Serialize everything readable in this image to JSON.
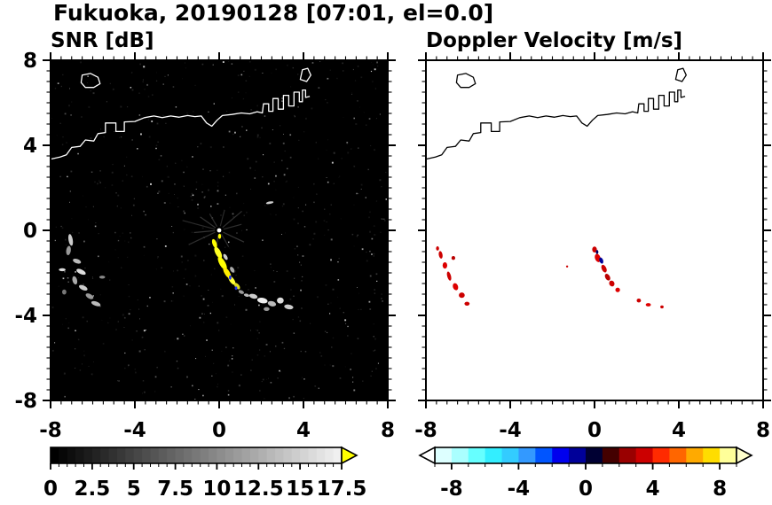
{
  "figure": {
    "title": "Fukuoka, 20190128 [07:01, el=0.0]"
  },
  "chart_data": {
    "type": "heatmap",
    "title": "Fukuoka, 20190128 [07:01, el=0.0]",
    "station": "Fukuoka",
    "date": "20190128",
    "time": "07:01",
    "elevation": "0.0",
    "axis_range": [
      -8,
      8
    ],
    "x_major_ticks": [
      -8,
      -4,
      0,
      4,
      8
    ],
    "x_tick_labels": [
      "-8",
      "-4",
      "0",
      "4",
      "8"
    ],
    "y_major_ticks": [
      8,
      4,
      0,
      -4,
      -8
    ],
    "y_tick_labels": [
      "8",
      "4",
      "0",
      "-4",
      "-8"
    ],
    "minor_tick_step": 0.5,
    "grid": false,
    "panels": [
      {
        "id": "snr",
        "title": "SNR [dB]",
        "units": "dB",
        "background": "#000000",
        "coast_color": "#ffffff",
        "show_y_labels": true,
        "noise": {
          "count": 700,
          "seed": 13,
          "palette": [
            "#151515",
            "#1d1d1d",
            "#252525",
            "#2d2d2d",
            "#383838",
            "#484848",
            "#5a5a5a",
            "#787878",
            "#9a9a9a",
            "#c0c0c0"
          ]
        },
        "center_artifact": {
          "x": 0,
          "y": 0,
          "dot_color": "#ffffff",
          "spokes": [
            {
              "angle": 155,
              "len": 1.6,
              "color": "#2e2e2e"
            },
            {
              "angle": 175,
              "len": 1.2,
              "color": "#333333"
            },
            {
              "angle": 195,
              "len": 1.8,
              "color": "#2a2a2a"
            },
            {
              "angle": 215,
              "len": 1.1,
              "color": "#333333"
            },
            {
              "angle": 240,
              "len": 0.9,
              "color": "#2e2e2e"
            },
            {
              "angle": 285,
              "len": 1.0,
              "color": "#2a2a2a"
            },
            {
              "angle": 320,
              "len": 1.4,
              "color": "#303030"
            },
            {
              "angle": 345,
              "len": 1.1,
              "color": "#2e2e2e"
            },
            {
              "angle": 25,
              "len": 1.3,
              "color": "#333333"
            },
            {
              "angle": 60,
              "len": 0.9,
              "color": "#2a2a2a"
            },
            {
              "angle": 100,
              "len": 1.0,
              "color": "#2e2e2e"
            }
          ]
        },
        "echoes": [
          {
            "x": -7.05,
            "y": -0.45,
            "rx": 0.1,
            "ry": 0.28,
            "rot": -10,
            "color": "#cccccc"
          },
          {
            "x": -7.15,
            "y": -0.95,
            "rx": 0.11,
            "ry": 0.22,
            "rot": 8,
            "color": "#999999"
          },
          {
            "x": -6.75,
            "y": -1.45,
            "rx": 0.2,
            "ry": 0.1,
            "rot": 20,
            "color": "#bbbbbb"
          },
          {
            "x": -6.55,
            "y": -1.95,
            "rx": 0.24,
            "ry": 0.11,
            "rot": 25,
            "color": "#dddddd"
          },
          {
            "x": -6.85,
            "y": -2.35,
            "rx": 0.11,
            "ry": 0.2,
            "rot": -15,
            "color": "#aaaaaa"
          },
          {
            "x": -6.45,
            "y": -2.7,
            "rx": 0.22,
            "ry": 0.11,
            "rot": 25,
            "color": "#cccccc"
          },
          {
            "x": -6.15,
            "y": -3.1,
            "rx": 0.2,
            "ry": 0.11,
            "rot": 30,
            "color": "#999999"
          },
          {
            "x": -5.85,
            "y": -3.45,
            "rx": 0.23,
            "ry": 0.1,
            "rot": 20,
            "color": "#bbbbbb"
          },
          {
            "x": -7.35,
            "y": -2.9,
            "rx": 0.1,
            "ry": 0.12,
            "rot": 0,
            "color": "#777777"
          },
          {
            "x": -7.45,
            "y": -1.85,
            "rx": 0.16,
            "ry": 0.07,
            "rot": 0,
            "color": "#dddddd"
          },
          {
            "x": -5.55,
            "y": -2.2,
            "rx": 0.14,
            "ry": 0.07,
            "rot": 0,
            "color": "#888888"
          },
          {
            "x": -0.22,
            "y": -0.62,
            "rx": 0.1,
            "ry": 0.22,
            "rot": -20,
            "color": "#ffff00"
          },
          {
            "x": -0.05,
            "y": -1.05,
            "rx": 0.13,
            "ry": 0.3,
            "rot": -28,
            "color": "#ffff22"
          },
          {
            "x": 0.15,
            "y": -1.55,
            "rx": 0.14,
            "ry": 0.35,
            "rot": -30,
            "color": "#ffff00"
          },
          {
            "x": 0.38,
            "y": -2.0,
            "rx": 0.12,
            "ry": 0.3,
            "rot": -32,
            "color": "#ffee00"
          },
          {
            "x": 0.6,
            "y": -2.35,
            "rx": 0.11,
            "ry": 0.25,
            "rot": -35,
            "color": "#ffff33"
          },
          {
            "x": 0.85,
            "y": -2.62,
            "rx": 0.1,
            "ry": 0.18,
            "rot": -40,
            "color": "#dddd22"
          },
          {
            "x": 0.3,
            "y": -1.25,
            "rx": 0.08,
            "ry": 0.16,
            "rot": -30,
            "color": "#cccccc"
          },
          {
            "x": 0.62,
            "y": -1.85,
            "rx": 0.09,
            "ry": 0.15,
            "rot": -30,
            "color": "#aaaaaa"
          },
          {
            "x": 1.05,
            "y": -2.9,
            "rx": 0.14,
            "ry": 0.08,
            "rot": 25,
            "color": "#999999"
          },
          {
            "x": 1.3,
            "y": -3.05,
            "rx": 0.13,
            "ry": 0.07,
            "rot": 15,
            "color": "#bbbbbb"
          },
          {
            "x": 0.52,
            "y": -2.22,
            "rx": 0.06,
            "ry": 0.1,
            "rot": 0,
            "color": "#2233ee"
          },
          {
            "x": 0.8,
            "y": -2.72,
            "rx": 0.06,
            "ry": 0.08,
            "rot": 0,
            "color": "#2233ee"
          },
          {
            "x": 0.02,
            "y": -0.28,
            "rx": 0.07,
            "ry": 0.12,
            "rot": 0,
            "color": "#ffff00"
          },
          {
            "x": 1.62,
            "y": -3.1,
            "rx": 0.2,
            "ry": 0.11,
            "rot": 15,
            "color": "#cccccc"
          },
          {
            "x": 2.05,
            "y": -3.3,
            "rx": 0.25,
            "ry": 0.13,
            "rot": 10,
            "color": "#eeeeee"
          },
          {
            "x": 2.5,
            "y": -3.45,
            "rx": 0.2,
            "ry": 0.12,
            "rot": 15,
            "color": "#bbbbbb"
          },
          {
            "x": 2.9,
            "y": -3.3,
            "rx": 0.16,
            "ry": 0.14,
            "rot": 0,
            "color": "#dddddd"
          },
          {
            "x": 3.3,
            "y": -3.6,
            "rx": 0.22,
            "ry": 0.11,
            "rot": 10,
            "color": "#cccccc"
          },
          {
            "x": 2.25,
            "y": -3.7,
            "rx": 0.14,
            "ry": 0.09,
            "rot": 0,
            "color": "#999999"
          },
          {
            "x": 2.4,
            "y": 1.3,
            "rx": 0.18,
            "ry": 0.06,
            "rot": -10,
            "color": "#cccccc"
          }
        ]
      },
      {
        "id": "velocity",
        "title": "Doppler Velocity [m/s]",
        "units": "m/s",
        "background": "#ffffff",
        "coast_color": "#000000",
        "show_y_labels": false,
        "echoes": [
          {
            "x": -7.3,
            "y": -1.15,
            "rx": 0.09,
            "ry": 0.18,
            "rot": -10,
            "color": "#cc0000"
          },
          {
            "x": -7.1,
            "y": -1.65,
            "rx": 0.11,
            "ry": 0.15,
            "rot": 0,
            "color": "#dd0000"
          },
          {
            "x": -6.9,
            "y": -2.15,
            "rx": 0.09,
            "ry": 0.22,
            "rot": -15,
            "color": "#cc0000"
          },
          {
            "x": -6.6,
            "y": -2.65,
            "rx": 0.12,
            "ry": 0.17,
            "rot": -20,
            "color": "#dd0000"
          },
          {
            "x": -6.3,
            "y": -3.05,
            "rx": 0.14,
            "ry": 0.13,
            "rot": 0,
            "color": "#cc0000"
          },
          {
            "x": -6.7,
            "y": -1.3,
            "rx": 0.09,
            "ry": 0.09,
            "rot": 0,
            "color": "#bb0000"
          },
          {
            "x": -6.05,
            "y": -3.45,
            "rx": 0.12,
            "ry": 0.09,
            "rot": 0,
            "color": "#cc0000"
          },
          {
            "x": -7.45,
            "y": -0.85,
            "rx": 0.07,
            "ry": 0.1,
            "rot": 0,
            "color": "#cc0000"
          },
          {
            "x": 0.0,
            "y": -0.9,
            "rx": 0.11,
            "ry": 0.14,
            "rot": 0,
            "color": "#cc0000"
          },
          {
            "x": 0.15,
            "y": -1.3,
            "rx": 0.13,
            "ry": 0.2,
            "rot": -20,
            "color": "#dd0000"
          },
          {
            "x": 0.32,
            "y": -1.42,
            "rx": 0.09,
            "ry": 0.15,
            "rot": -20,
            "color": "#000099"
          },
          {
            "x": 0.45,
            "y": -1.8,
            "rx": 0.11,
            "ry": 0.19,
            "rot": -25,
            "color": "#cc0000"
          },
          {
            "x": 0.62,
            "y": -2.2,
            "rx": 0.11,
            "ry": 0.17,
            "rot": -30,
            "color": "#bb0000"
          },
          {
            "x": 0.82,
            "y": -2.5,
            "rx": 0.12,
            "ry": 0.14,
            "rot": -30,
            "color": "#cc0000"
          },
          {
            "x": 1.1,
            "y": -2.8,
            "rx": 0.11,
            "ry": 0.11,
            "rot": 0,
            "color": "#dd0000"
          },
          {
            "x": 0.12,
            "y": -1.02,
            "rx": 0.06,
            "ry": 0.09,
            "rot": 0,
            "color": "#000066"
          },
          {
            "x": 2.1,
            "y": -3.3,
            "rx": 0.1,
            "ry": 0.09,
            "rot": 0,
            "color": "#cc0000"
          },
          {
            "x": 2.55,
            "y": -3.5,
            "rx": 0.12,
            "ry": 0.08,
            "rot": 0,
            "color": "#dd0000"
          },
          {
            "x": 3.2,
            "y": -3.6,
            "rx": 0.08,
            "ry": 0.07,
            "rot": 0,
            "color": "#cc0000"
          },
          {
            "x": -1.3,
            "y": -1.7,
            "rx": 0.05,
            "ry": 0.05,
            "rot": 0,
            "color": "#cc0000"
          }
        ]
      }
    ],
    "coastline_paths": [
      {
        "closed": false,
        "points": [
          [
            -8.0,
            3.35
          ],
          [
            -7.55,
            3.45
          ],
          [
            -7.25,
            3.55
          ],
          [
            -7.0,
            3.9
          ],
          [
            -6.6,
            3.95
          ],
          [
            -6.35,
            4.25
          ],
          [
            -5.95,
            4.2
          ],
          [
            -5.75,
            4.55
          ],
          [
            -5.4,
            4.6
          ],
          [
            -5.4,
            5.05
          ],
          [
            -4.9,
            5.05
          ],
          [
            -4.9,
            4.65
          ],
          [
            -4.5,
            4.65
          ],
          [
            -4.5,
            5.1
          ],
          [
            -4.0,
            5.12
          ],
          [
            -3.55,
            5.3
          ],
          [
            -3.1,
            5.38
          ],
          [
            -2.7,
            5.3
          ],
          [
            -2.3,
            5.38
          ],
          [
            -1.9,
            5.32
          ],
          [
            -1.5,
            5.4
          ],
          [
            -1.15,
            5.35
          ],
          [
            -0.85,
            5.38
          ],
          [
            -0.6,
            5.05
          ],
          [
            -0.35,
            4.9
          ],
          [
            -0.1,
            5.18
          ],
          [
            0.15,
            5.4
          ],
          [
            0.6,
            5.45
          ],
          [
            1.05,
            5.52
          ],
          [
            1.45,
            5.48
          ],
          [
            1.8,
            5.58
          ],
          [
            2.05,
            5.52
          ],
          [
            2.1,
            5.95
          ],
          [
            2.35,
            5.95
          ],
          [
            2.35,
            5.6
          ],
          [
            2.55,
            5.6
          ],
          [
            2.55,
            6.2
          ],
          [
            2.8,
            6.2
          ],
          [
            2.8,
            5.7
          ],
          [
            3.05,
            5.7
          ],
          [
            3.05,
            6.35
          ],
          [
            3.3,
            6.35
          ],
          [
            3.3,
            5.85
          ],
          [
            3.55,
            5.85
          ],
          [
            3.55,
            6.5
          ],
          [
            3.8,
            6.5
          ],
          [
            3.8,
            6.05
          ],
          [
            3.95,
            6.05
          ],
          [
            3.95,
            6.6
          ],
          [
            4.1,
            6.6
          ],
          [
            4.1,
            6.25
          ],
          [
            4.3,
            6.3
          ]
        ]
      },
      {
        "closed": true,
        "points": [
          [
            -6.55,
            6.95
          ],
          [
            -6.5,
            7.3
          ],
          [
            -6.1,
            7.38
          ],
          [
            -5.75,
            7.2
          ],
          [
            -5.65,
            6.9
          ],
          [
            -5.95,
            6.72
          ],
          [
            -6.35,
            6.72
          ]
        ]
      },
      {
        "closed": true,
        "points": [
          [
            3.85,
            7.1
          ],
          [
            3.95,
            7.55
          ],
          [
            4.2,
            7.62
          ],
          [
            4.35,
            7.3
          ],
          [
            4.15,
            7.0
          ]
        ]
      }
    ],
    "colorbars": [
      {
        "id": "snr",
        "orientation": "horizontal",
        "min": 0,
        "max": 17.5,
        "minor_step": 0.5,
        "major_tick_values": [
          0,
          2.5,
          5,
          7.5,
          10,
          12.5,
          15,
          17.5
        ],
        "labels": [
          "0",
          "2.5",
          "5",
          "7.5",
          "10",
          "12.5",
          "15",
          "17.5"
        ],
        "gradient": [
          "#000000",
          "#f0f0f0"
        ],
        "over_color": "#ffff00",
        "arrow_left": false,
        "arrow_right": true
      },
      {
        "id": "velocity",
        "orientation": "horizontal",
        "min": -9,
        "max": 9,
        "minor_step": 1,
        "major_tick_values": [
          -8,
          -4,
          0,
          4,
          8
        ],
        "labels": [
          "-8",
          "-4",
          "0",
          "4",
          "8"
        ],
        "segments": [
          "#ddffff",
          "#aaffff",
          "#66ffff",
          "#33eeff",
          "#33ccff",
          "#3399ff",
          "#0055ff",
          "#0000ee",
          "#000099",
          "#000033",
          "#440000",
          "#990000",
          "#cc0000",
          "#ff2a00",
          "#ff6600",
          "#ffaa00",
          "#ffdd00",
          "#ffff99"
        ],
        "under_color": "#ffffff",
        "over_color": "#ffffcc",
        "arrow_left": true,
        "arrow_right": true
      }
    ]
  }
}
